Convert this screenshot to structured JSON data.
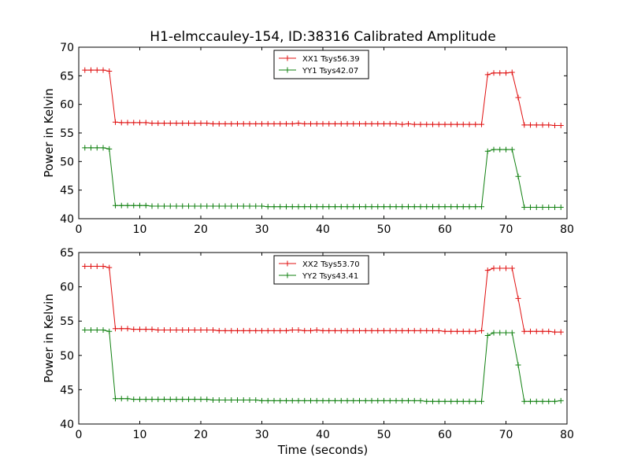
{
  "title": "H1-elmccauley-154, ID:38316 Calibrated Amplitude",
  "colors": {
    "red": "#e01010",
    "green": "#108010"
  },
  "chart_data": [
    {
      "type": "line",
      "title": "H1-elmccauley-154, ID:38316 Calibrated Amplitude",
      "xlabel": "",
      "ylabel": "Power in Kelvin",
      "xlim": [
        0,
        80
      ],
      "ylim": [
        40,
        70
      ],
      "xticks": [
        "0",
        "10",
        "20",
        "30",
        "40",
        "50",
        "60",
        "70",
        "80"
      ],
      "yticks": [
        "40",
        "45",
        "50",
        "55",
        "60",
        "65",
        "70"
      ],
      "grid": false,
      "legend_position": "top-center",
      "x": [
        1,
        2,
        3,
        4,
        5,
        6,
        7,
        8,
        9,
        10,
        11,
        12,
        13,
        14,
        15,
        16,
        17,
        18,
        19,
        20,
        21,
        22,
        23,
        24,
        25,
        26,
        27,
        28,
        29,
        30,
        31,
        32,
        33,
        34,
        35,
        36,
        37,
        38,
        39,
        40,
        41,
        42,
        43,
        44,
        45,
        46,
        47,
        48,
        49,
        50,
        51,
        52,
        53,
        54,
        55,
        56,
        57,
        58,
        59,
        60,
        61,
        62,
        63,
        64,
        65,
        66,
        67,
        68,
        69,
        70,
        71,
        72,
        73,
        74,
        75,
        76,
        77,
        78,
        79
      ],
      "series": [
        {
          "name": "XX1 Tsys56.39",
          "color": "#e01010",
          "values": [
            66.0,
            66.0,
            66.0,
            66.0,
            65.8,
            56.9,
            56.8,
            56.8,
            56.8,
            56.8,
            56.8,
            56.7,
            56.7,
            56.7,
            56.7,
            56.7,
            56.7,
            56.7,
            56.7,
            56.7,
            56.7,
            56.6,
            56.6,
            56.6,
            56.6,
            56.6,
            56.6,
            56.6,
            56.6,
            56.6,
            56.6,
            56.6,
            56.6,
            56.6,
            56.6,
            56.7,
            56.6,
            56.6,
            56.6,
            56.6,
            56.6,
            56.6,
            56.6,
            56.6,
            56.6,
            56.6,
            56.6,
            56.6,
            56.6,
            56.6,
            56.6,
            56.6,
            56.5,
            56.6,
            56.5,
            56.5,
            56.5,
            56.5,
            56.5,
            56.5,
            56.5,
            56.5,
            56.5,
            56.5,
            56.5,
            56.5,
            65.2,
            65.5,
            65.5,
            65.5,
            65.6,
            61.2,
            56.4,
            56.4,
            56.4,
            56.4,
            56.4,
            56.3,
            56.3
          ]
        },
        {
          "name": "YY1 Tsys42.07",
          "color": "#108010",
          "values": [
            52.4,
            52.4,
            52.4,
            52.4,
            52.2,
            42.3,
            42.3,
            42.3,
            42.3,
            42.3,
            42.3,
            42.2,
            42.2,
            42.2,
            42.2,
            42.2,
            42.2,
            42.2,
            42.2,
            42.2,
            42.2,
            42.2,
            42.2,
            42.2,
            42.2,
            42.2,
            42.2,
            42.2,
            42.2,
            42.2,
            42.1,
            42.1,
            42.1,
            42.1,
            42.1,
            42.1,
            42.1,
            42.1,
            42.1,
            42.1,
            42.1,
            42.1,
            42.1,
            42.1,
            42.1,
            42.1,
            42.1,
            42.1,
            42.1,
            42.1,
            42.1,
            42.1,
            42.1,
            42.1,
            42.1,
            42.1,
            42.1,
            42.1,
            42.1,
            42.1,
            42.1,
            42.1,
            42.1,
            42.1,
            42.1,
            42.1,
            51.8,
            52.1,
            52.1,
            52.1,
            52.1,
            47.4,
            42.0,
            42.0,
            42.0,
            42.0,
            42.0,
            42.0,
            42.0
          ]
        }
      ]
    },
    {
      "type": "line",
      "title": "",
      "xlabel": "Time (seconds)",
      "ylabel": "Power in Kelvin",
      "xlim": [
        0,
        80
      ],
      "ylim": [
        40,
        65
      ],
      "xticks": [
        "0",
        "10",
        "20",
        "30",
        "40",
        "50",
        "60",
        "70",
        "80"
      ],
      "yticks": [
        "40",
        "45",
        "50",
        "55",
        "60",
        "65"
      ],
      "grid": false,
      "legend_position": "top-center",
      "x": [
        1,
        2,
        3,
        4,
        5,
        6,
        7,
        8,
        9,
        10,
        11,
        12,
        13,
        14,
        15,
        16,
        17,
        18,
        19,
        20,
        21,
        22,
        23,
        24,
        25,
        26,
        27,
        28,
        29,
        30,
        31,
        32,
        33,
        34,
        35,
        36,
        37,
        38,
        39,
        40,
        41,
        42,
        43,
        44,
        45,
        46,
        47,
        48,
        49,
        50,
        51,
        52,
        53,
        54,
        55,
        56,
        57,
        58,
        59,
        60,
        61,
        62,
        63,
        64,
        65,
        66,
        67,
        68,
        69,
        70,
        71,
        72,
        73,
        74,
        75,
        76,
        77,
        78,
        79
      ],
      "series": [
        {
          "name": "XX2 Tsys53.70",
          "color": "#e01010",
          "values": [
            63.0,
            63.0,
            63.0,
            63.0,
            62.8,
            53.9,
            53.9,
            53.9,
            53.8,
            53.8,
            53.8,
            53.8,
            53.7,
            53.7,
            53.7,
            53.7,
            53.7,
            53.7,
            53.7,
            53.7,
            53.7,
            53.7,
            53.6,
            53.6,
            53.6,
            53.6,
            53.6,
            53.6,
            53.6,
            53.6,
            53.6,
            53.6,
            53.6,
            53.6,
            53.7,
            53.7,
            53.6,
            53.6,
            53.7,
            53.6,
            53.6,
            53.6,
            53.6,
            53.6,
            53.6,
            53.6,
            53.6,
            53.6,
            53.6,
            53.6,
            53.6,
            53.6,
            53.6,
            53.6,
            53.6,
            53.6,
            53.6,
            53.6,
            53.6,
            53.5,
            53.5,
            53.5,
            53.5,
            53.5,
            53.5,
            53.6,
            62.4,
            62.7,
            62.7,
            62.7,
            62.7,
            58.3,
            53.5,
            53.5,
            53.5,
            53.5,
            53.5,
            53.4,
            53.4
          ]
        },
        {
          "name": "YY2 Tsys43.41",
          "color": "#108010",
          "values": [
            53.7,
            53.7,
            53.7,
            53.7,
            53.5,
            43.7,
            43.7,
            43.7,
            43.6,
            43.6,
            43.6,
            43.6,
            43.6,
            43.6,
            43.6,
            43.6,
            43.6,
            43.6,
            43.6,
            43.6,
            43.6,
            43.5,
            43.5,
            43.5,
            43.5,
            43.5,
            43.5,
            43.5,
            43.5,
            43.4,
            43.4,
            43.4,
            43.4,
            43.4,
            43.4,
            43.4,
            43.4,
            43.4,
            43.4,
            43.4,
            43.4,
            43.4,
            43.4,
            43.4,
            43.4,
            43.4,
            43.4,
            43.4,
            43.4,
            43.4,
            43.4,
            43.4,
            43.4,
            43.4,
            43.4,
            43.4,
            43.3,
            43.3,
            43.3,
            43.3,
            43.3,
            43.3,
            43.3,
            43.3,
            43.3,
            43.3,
            52.9,
            53.3,
            53.3,
            53.3,
            53.3,
            48.6,
            43.3,
            43.3,
            43.3,
            43.3,
            43.3,
            43.3,
            43.4
          ]
        }
      ]
    }
  ]
}
